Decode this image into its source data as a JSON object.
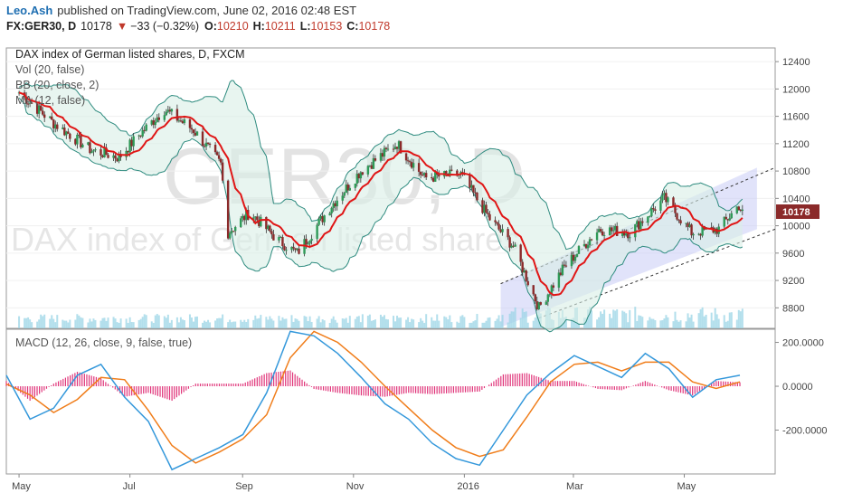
{
  "header": {
    "author": "Leo.Ash",
    "published": "published on TradingView.com, June 02, 2016 02:48 EST",
    "symbol": "FX:GER30, D",
    "last": "10178",
    "change": "−33 (−0.32%)",
    "o_label": "O:",
    "o_value": "10210",
    "h_label": "H:",
    "h_value": "10211",
    "l_label": "L:",
    "l_value": "10153",
    "c_label": "C:",
    "c_value": "10178"
  },
  "legend": {
    "title": "DAX index of German listed shares, D, FXCM",
    "items": [
      "Vol (20, false)",
      "BB (20, close, 2)",
      "MA (12, false)"
    ],
    "macd": "MACD (12, 26, close, 9, false, true)"
  },
  "watermark": {
    "symbol": "GER30, D",
    "description": "DAX index of German listed shares"
  },
  "colors": {
    "up": "#2e9a57",
    "down": "#8b2a2a",
    "ma": "#e01616",
    "bb": "#2e8b7f",
    "bb_fill": "#d8efe6",
    "channel_fill": "#c9ccf5",
    "macd_line": "#3498db",
    "signal_line": "#f07d1a",
    "hist": "#e0357a",
    "volume": "#9ad4e6",
    "price_tag": "#8b2a2a",
    "accent_link": "#1f6fb2"
  },
  "chart_data": [
    {
      "type": "candlestick",
      "title": "DAX index of German listed shares, D, FXCM",
      "ylim": [
        8500,
        12600
      ],
      "y_ticks": [
        "12400",
        "12000",
        "11600",
        "11200",
        "10800",
        "10400",
        "10000",
        "9600",
        "9200",
        "8800"
      ],
      "last_price_label": "10178",
      "x_ticks": [
        "May",
        "Jul",
        "Sep",
        "Nov",
        "2016",
        "Mar",
        "May"
      ],
      "close_path_keypoints": [
        [
          "2015-05-01",
          11950
        ],
        [
          "2015-05-20",
          11500
        ],
        [
          "2015-06-10",
          11100
        ],
        [
          "2015-06-25",
          11000
        ],
        [
          "2015-07-05",
          11300
        ],
        [
          "2015-07-20",
          11700
        ],
        [
          "2015-08-05",
          11400
        ],
        [
          "2015-08-20",
          10900
        ],
        [
          "2015-08-24",
          9900
        ],
        [
          "2015-09-05",
          10200
        ],
        [
          "2015-09-20",
          9800
        ],
        [
          "2015-10-01",
          9600
        ],
        [
          "2015-10-20",
          10300
        ],
        [
          "2015-11-05",
          10800
        ],
        [
          "2015-11-25",
          11200
        ],
        [
          "2015-12-10",
          10700
        ],
        [
          "2015-12-30",
          10750
        ],
        [
          "2016-01-15",
          10100
        ],
        [
          "2016-01-28",
          9700
        ],
        [
          "2016-02-11",
          8800
        ],
        [
          "2016-02-25",
          9400
        ],
        [
          "2016-03-15",
          9950
        ],
        [
          "2016-04-01",
          9900
        ],
        [
          "2016-04-20",
          10400
        ],
        [
          "2016-05-05",
          9900
        ],
        [
          "2016-05-20",
          9950
        ],
        [
          "2016-05-31",
          10300
        ],
        [
          "2016-06-02",
          10178
        ]
      ],
      "ma": {
        "name": "MA (12, false)"
      },
      "bollinger": {
        "name": "BB (20, close, 2)"
      },
      "volume": {
        "name": "Vol (20, false)"
      },
      "channel": {
        "start": [
          "2016-02-11",
          8650
        ],
        "end": [
          "2016-06-10",
          9950
        ],
        "width": 900
      }
    },
    {
      "type": "line",
      "title": "MACD (12, 26, close, 9, false, true)",
      "y_ticks": [
        "200.0000",
        "0.0000",
        "-200.0000"
      ],
      "ylim": [
        -400,
        260
      ],
      "series": [
        {
          "name": "MACD",
          "keypoints": [
            [
              0,
              50
            ],
            [
              20,
              -150
            ],
            [
              40,
              -100
            ],
            [
              60,
              50
            ],
            [
              80,
              100
            ],
            [
              100,
              -50
            ],
            [
              120,
              -160
            ],
            [
              140,
              -380
            ],
            [
              160,
              -330
            ],
            [
              180,
              -280
            ],
            [
              200,
              -220
            ],
            [
              220,
              -30
            ],
            [
              240,
              250
            ],
            [
              260,
              230
            ],
            [
              280,
              150
            ],
            [
              300,
              40
            ],
            [
              320,
              -80
            ],
            [
              340,
              -150
            ],
            [
              360,
              -260
            ],
            [
              380,
              -330
            ],
            [
              400,
              -360
            ],
            [
              420,
              -200
            ],
            [
              440,
              -40
            ],
            [
              460,
              60
            ],
            [
              480,
              140
            ],
            [
              500,
              90
            ],
            [
              520,
              40
            ],
            [
              540,
              150
            ],
            [
              560,
              80
            ],
            [
              580,
              -50
            ],
            [
              600,
              30
            ],
            [
              620,
              50
            ]
          ]
        },
        {
          "name": "Signal",
          "keypoints": [
            [
              0,
              10
            ],
            [
              20,
              -40
            ],
            [
              40,
              -120
            ],
            [
              60,
              -60
            ],
            [
              80,
              40
            ],
            [
              100,
              30
            ],
            [
              120,
              -110
            ],
            [
              140,
              -270
            ],
            [
              160,
              -350
            ],
            [
              180,
              -300
            ],
            [
              200,
              -240
            ],
            [
              220,
              -130
            ],
            [
              240,
              130
            ],
            [
              260,
              250
            ],
            [
              280,
              200
            ],
            [
              300,
              110
            ],
            [
              320,
              0
            ],
            [
              340,
              -100
            ],
            [
              360,
              -200
            ],
            [
              380,
              -280
            ],
            [
              400,
              -320
            ],
            [
              420,
              -290
            ],
            [
              440,
              -140
            ],
            [
              460,
              20
            ],
            [
              480,
              100
            ],
            [
              500,
              110
            ],
            [
              520,
              70
            ],
            [
              540,
              110
            ],
            [
              560,
              110
            ],
            [
              580,
              20
            ],
            [
              600,
              -10
            ],
            [
              620,
              20
            ]
          ]
        }
      ]
    }
  ]
}
